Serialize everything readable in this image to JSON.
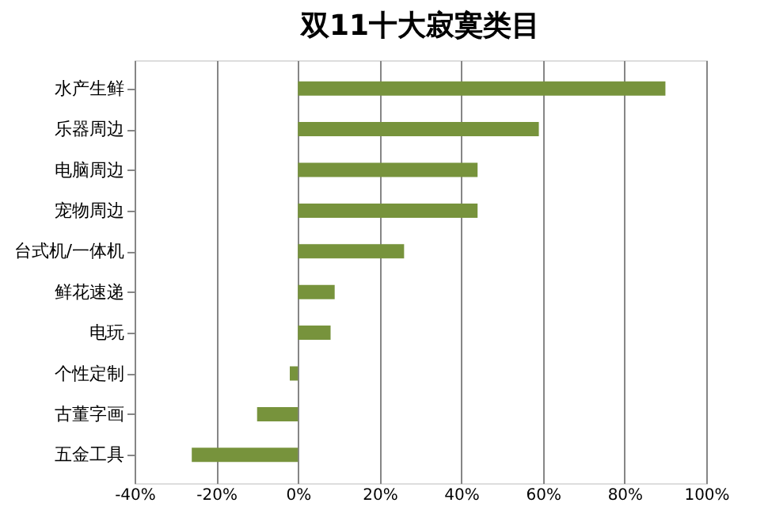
{
  "chart_data": {
    "type": "bar",
    "orientation": "horizontal",
    "title": "双11十大寂寞类目",
    "categories": [
      "水产生鲜",
      "乐器周边",
      "电脑周边",
      "宠物周边",
      "台式机/一体机",
      "鲜花速递",
      "电玩",
      "个性定制",
      "古董字画",
      "五金工具"
    ],
    "values": [
      90,
      59,
      44,
      44,
      26,
      9,
      8,
      -2,
      -10,
      -26
    ],
    "color": "#77933c",
    "xlim": [
      -40,
      100
    ],
    "xticks": [
      {
        "value": -40,
        "label": "-40%"
      },
      {
        "value": -20,
        "label": "-20%"
      },
      {
        "value": 0,
        "label": "0%"
      },
      {
        "value": 20,
        "label": "20%"
      },
      {
        "value": 40,
        "label": "40%"
      },
      {
        "value": 60,
        "label": "60%"
      },
      {
        "value": 80,
        "label": "80%"
      },
      {
        "value": 100,
        "label": "100%"
      }
    ],
    "grid": "x"
  }
}
